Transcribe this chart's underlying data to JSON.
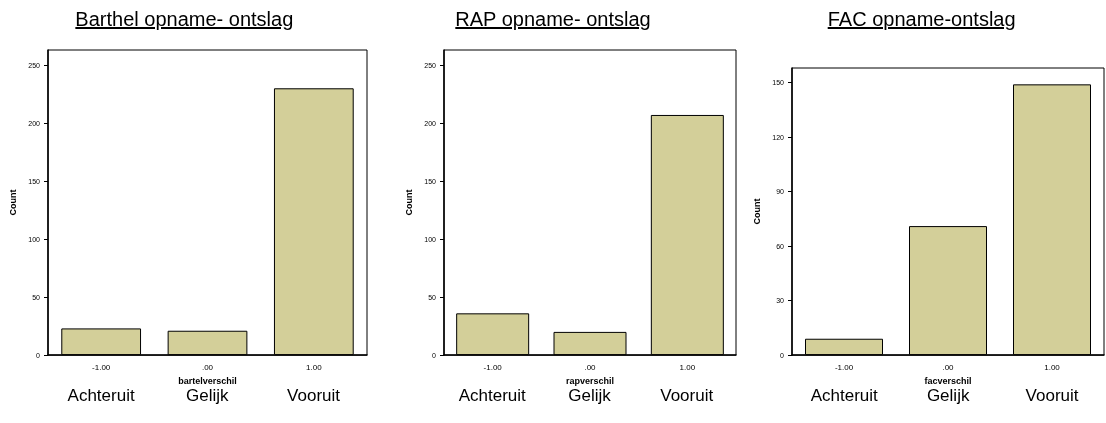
{
  "chart_data": [
    {
      "type": "bar",
      "title": "Barthel opname- ontslag",
      "xlabel": "bartelverschil",
      "ylabel": "Count",
      "categories": [
        "-1.00",
        ".00",
        "1.00"
      ],
      "values": [
        23,
        21,
        230
      ],
      "color": "#d3cf99",
      "ylim": [
        0,
        263
      ],
      "yticks": [
        0,
        50,
        100,
        150,
        200,
        250
      ],
      "annotations": [
        "Achteruit",
        "Gelijk",
        "Vooruit"
      ]
    },
    {
      "type": "bar",
      "title": "RAP opname- ontslag",
      "xlabel": "rapverschil",
      "ylabel": "Count",
      "categories": [
        "-1.00",
        ".00",
        "1.00"
      ],
      "values": [
        36,
        20,
        207
      ],
      "color": "#d3cf99",
      "ylim": [
        0,
        263
      ],
      "yticks": [
        0,
        50,
        100,
        150,
        200,
        250
      ],
      "annotations": [
        "Achteruit",
        "Gelijk",
        "Vooruit"
      ]
    },
    {
      "type": "bar",
      "title": "FAC opname-ontslag",
      "xlabel": "facverschil",
      "ylabel": "Count",
      "categories": [
        "-1.00",
        ".00",
        "1.00"
      ],
      "values": [
        9,
        71,
        149
      ],
      "color": "#d3cf99",
      "ylim": [
        0,
        158
      ],
      "yticks": [
        0,
        30,
        60,
        90,
        120,
        150
      ],
      "annotations": [
        "Achteruit",
        "Gelijk",
        "Vooruit"
      ]
    }
  ]
}
